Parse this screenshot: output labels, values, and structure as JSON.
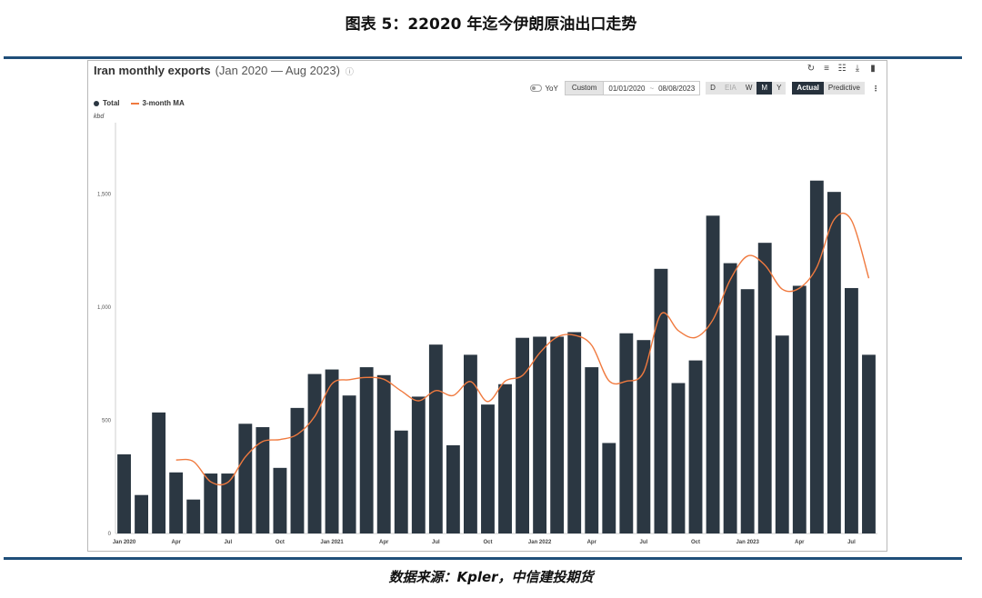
{
  "report": {
    "figure_title": "图表 5：22020 年迄今伊朗原油出口走势",
    "source": "数据来源：Kpler，中信建投期货"
  },
  "chart_ui": {
    "title": "Iran monthly exports",
    "range": "(Jan 2020 — Aug 2023)",
    "info_icon": "ⓘ",
    "icons": [
      "refresh-icon",
      "filter-icon",
      "grid-icon",
      "download-icon",
      "bookmark-icon"
    ],
    "yoy_label": "YoY",
    "custom_label": "Custom",
    "date_from": "01/01/2020",
    "date_sep": "~",
    "date_to": "08/08/2023",
    "granularity": [
      "D",
      "EIA",
      "W",
      "M",
      "Y"
    ],
    "granularity_selected": "M",
    "modes": [
      "Actual",
      "Predictive"
    ],
    "mode_selected": "Actual",
    "menu_glyph": "⋮",
    "unit": "kbd"
  },
  "chart_data": {
    "type": "bar",
    "x": [
      "2020-01",
      "2020-02",
      "2020-03",
      "2020-04",
      "2020-05",
      "2020-06",
      "2020-07",
      "2020-08",
      "2020-09",
      "2020-10",
      "2020-11",
      "2020-12",
      "2021-01",
      "2021-02",
      "2021-03",
      "2021-04",
      "2021-05",
      "2021-06",
      "2021-07",
      "2021-08",
      "2021-09",
      "2021-10",
      "2021-11",
      "2021-12",
      "2022-01",
      "2022-02",
      "2022-03",
      "2022-04",
      "2022-05",
      "2022-06",
      "2022-07",
      "2022-08",
      "2022-09",
      "2022-10",
      "2022-11",
      "2022-12",
      "2023-01",
      "2023-02",
      "2023-03",
      "2023-04",
      "2023-05",
      "2023-06",
      "2023-07",
      "2023-08"
    ],
    "x_tick_labels": [
      {
        "index": 0,
        "label": "Jan 2020"
      },
      {
        "index": 3,
        "label": "Apr"
      },
      {
        "index": 6,
        "label": "Jul"
      },
      {
        "index": 9,
        "label": "Oct"
      },
      {
        "index": 12,
        "label": "Jan 2021"
      },
      {
        "index": 15,
        "label": "Apr"
      },
      {
        "index": 18,
        "label": "Jul"
      },
      {
        "index": 21,
        "label": "Oct"
      },
      {
        "index": 24,
        "label": "Jan 2022"
      },
      {
        "index": 27,
        "label": "Apr"
      },
      {
        "index": 30,
        "label": "Jul"
      },
      {
        "index": 33,
        "label": "Oct"
      },
      {
        "index": 36,
        "label": "Jan 2023"
      },
      {
        "index": 39,
        "label": "Apr"
      },
      {
        "index": 42,
        "label": "Jul"
      }
    ],
    "series": [
      {
        "name": "Total",
        "type": "bar",
        "color": "#2b3742",
        "values": [
          350,
          170,
          535,
          270,
          150,
          265,
          265,
          485,
          470,
          290,
          555,
          705,
          725,
          610,
          735,
          700,
          455,
          605,
          835,
          390,
          790,
          570,
          660,
          865,
          870,
          870,
          890,
          735,
          400,
          885,
          855,
          1170,
          665,
          765,
          1405,
          1195,
          1080,
          1285,
          875,
          1095,
          1560,
          1510,
          1085,
          790
        ]
      },
      {
        "name": "3-month MA",
        "type": "line",
        "color": "#f07a3f",
        "computed_from": "Total",
        "window": 3
      }
    ],
    "ylabel": "kbd",
    "ylim": [
      0,
      1800
    ],
    "y_ticks": [
      0,
      500,
      1000,
      1500
    ],
    "y_tick_labels": [
      "0",
      "500",
      "1,000",
      "1,500"
    ],
    "legend_position": "top-left",
    "grid": false
  }
}
